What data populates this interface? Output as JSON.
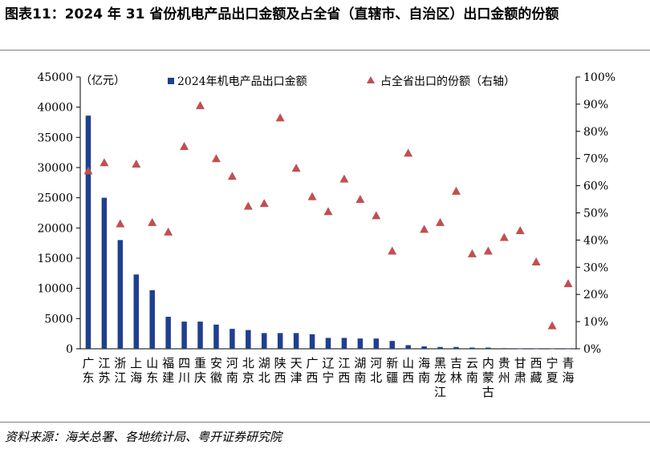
{
  "title": "图表11：2024 年 31 省份机电产品出口金额及占全省（直辖市、自治区）出口金额的份额",
  "source": "资料来源：海关总署、各地统计局、粤开证券研究院",
  "colors": {
    "bar": "#1f3f8f",
    "marker": "#c0504d",
    "axis": "#000000",
    "rule": "#7f7f7f"
  },
  "chart_data": {
    "type": "bar",
    "unit_label": "（亿元）",
    "categories": [
      "广东",
      "江苏",
      "浙江",
      "上海",
      "山东",
      "福建",
      "四川",
      "重庆",
      "安徽",
      "河南",
      "北京",
      "湖北",
      "陕西",
      "天津",
      "广西",
      "辽宁",
      "江西",
      "湖南",
      "河北",
      "新疆",
      "山西",
      "海南",
      "黑龙江",
      "吉林",
      "云南",
      "内蒙古",
      "贵州",
      "甘肃",
      "西藏",
      "宁夏",
      "青海"
    ],
    "series": [
      {
        "name": "2024年机电产品出口金额",
        "type": "bar",
        "axis": "left",
        "values": [
          38600,
          25000,
          18000,
          12300,
          9700,
          5300,
          4500,
          4500,
          4000,
          3300,
          3100,
          2600,
          2600,
          2600,
          2400,
          1800,
          1800,
          1700,
          1700,
          1300,
          600,
          400,
          300,
          300,
          200,
          200,
          100,
          20,
          10,
          10,
          10
        ]
      },
      {
        "name": "占全省出口的份额（右轴）",
        "type": "scatter",
        "axis": "right",
        "values": [
          65.5,
          68.5,
          46,
          68,
          46.5,
          43,
          74.5,
          89.5,
          70,
          63.5,
          52.5,
          53.5,
          85,
          66.5,
          56,
          50.5,
          62.5,
          55,
          49,
          36,
          72,
          44,
          46.5,
          58,
          35,
          36,
          41,
          43.5,
          32,
          8.5,
          24
        ]
      }
    ],
    "y_left": {
      "min": 0,
      "max": 45000,
      "ticks": [
        "0",
        "5000",
        "10000",
        "15000",
        "20000",
        "25000",
        "30000",
        "35000",
        "40000",
        "45000"
      ]
    },
    "y_right": {
      "min": 0,
      "max": 100,
      "ticks": [
        "0%",
        "10%",
        "20%",
        "30%",
        "40%",
        "50%",
        "60%",
        "70%",
        "80%",
        "90%",
        "100%"
      ]
    },
    "grid": false,
    "legend_position": "top"
  }
}
